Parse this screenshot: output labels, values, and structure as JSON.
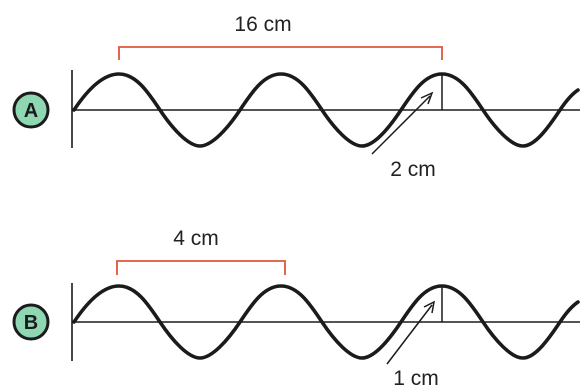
{
  "waves": [
    {
      "badge": "A",
      "wavelength_label": "16 cm",
      "amplitude_label": "2 cm"
    },
    {
      "badge": "B",
      "wavelength_label": "4 cm",
      "amplitude_label": "1 cm"
    }
  ],
  "colors": {
    "badge_fill": "#8fd6b3",
    "bracket": "#e0553a",
    "wave": "#1b1b1b"
  }
}
